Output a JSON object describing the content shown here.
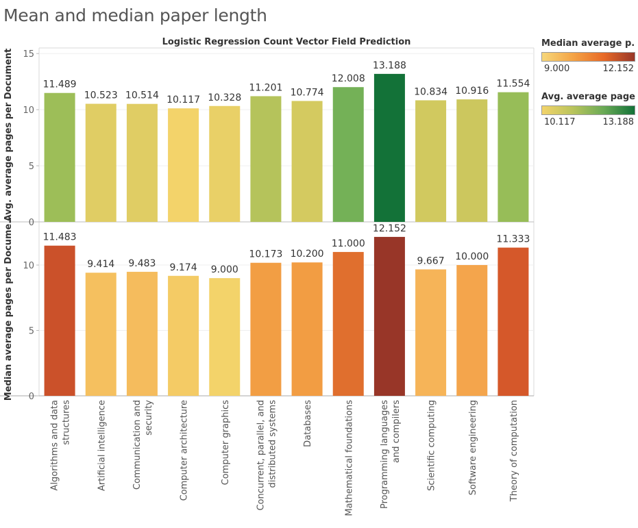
{
  "page": {
    "title": "Mean and median paper length"
  },
  "chart_data": {
    "type": "bar",
    "title": "Logistic Regression Count Vector Field Prediction",
    "categories": [
      "Algorithms and data structures",
      "Artificial intelligence",
      "Communication and security",
      "Computer architecture",
      "Computer graphics",
      "Concurrent, parallel, and distributed systems",
      "Databases",
      "Mathematical foundations",
      "Programming languages and compilers",
      "Scientific computing",
      "Software engineering",
      "Theory of computation"
    ],
    "category_lines": [
      [
        "Algorithms and data",
        "structures"
      ],
      [
        "Artificial intelligence"
      ],
      [
        "Communication and",
        "security"
      ],
      [
        "Computer architecture"
      ],
      [
        "Computer graphics"
      ],
      [
        "Concurrent, parallel, and",
        "distributed systems"
      ],
      [
        "Databases"
      ],
      [
        "Mathematical foundations"
      ],
      [
        "Programming languages",
        "and compilers"
      ],
      [
        "Scientific computing"
      ],
      [
        "Software engineering"
      ],
      [
        "Theory of computation"
      ]
    ],
    "panels": [
      {
        "ylabel": "Avg. average pages per Document",
        "ylim": [
          0,
          15.5
        ],
        "yticks": [
          0,
          5,
          10,
          15
        ],
        "values": [
          11.489,
          10.523,
          10.514,
          10.117,
          10.328,
          11.201,
          10.774,
          12.008,
          13.188,
          10.834,
          10.916,
          11.554
        ],
        "labels": [
          "11.489",
          "10.523",
          "10.514",
          "10.117",
          "10.328",
          "11.201",
          "10.774",
          "12.008",
          "13.188",
          "10.834",
          "10.916",
          "11.554"
        ],
        "color_scale": {
          "min": 10.117,
          "max": 13.188,
          "colors": [
            "#f3d36a",
            "#cfc85e",
            "#8fbb57",
            "#55a656",
            "#137238"
          ]
        }
      },
      {
        "ylabel": "Median average pages per Docume..",
        "ylim": [
          0,
          13.3
        ],
        "yticks": [
          0,
          5,
          10
        ],
        "values": [
          11.483,
          9.414,
          9.483,
          9.174,
          9.0,
          10.173,
          10.2,
          11.0,
          12.152,
          9.667,
          10.0,
          11.333
        ],
        "labels": [
          "11.483",
          "9.414",
          "9.483",
          "9.174",
          "9.000",
          "10.173",
          "10.200",
          "11.000",
          "12.152",
          "9.667",
          "10.000",
          "11.333"
        ],
        "color_scale": {
          "min": 9.0,
          "max": 12.152,
          "colors": [
            "#f3d36a",
            "#f6ae55",
            "#ee8d33",
            "#d4562a",
            "#983628"
          ]
        }
      }
    ],
    "grid": true
  },
  "legends": [
    {
      "title": "Median average p..",
      "min_label": "9.000",
      "max_label": "12.152",
      "gradient": [
        "#f6d77a",
        "#f4a446",
        "#e86a27",
        "#983628"
      ]
    },
    {
      "title": "Avg. average page..",
      "min_label": "10.117",
      "max_label": "13.188",
      "gradient": [
        "#f3d36a",
        "#b9c45c",
        "#6aaa56",
        "#137238"
      ]
    }
  ]
}
